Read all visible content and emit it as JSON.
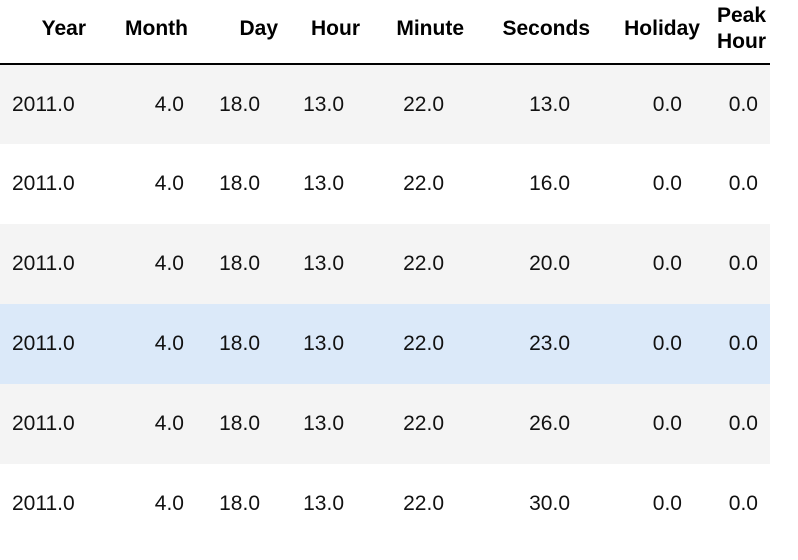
{
  "table": {
    "headers": {
      "year": "Year",
      "month": "Month",
      "day": "Day",
      "hour": "Hour",
      "minute": "Minute",
      "seconds": "Seconds",
      "holiday": "Holiday",
      "peak_hour": "Peak\nHour"
    },
    "highlighted_row_index": 3,
    "highlight_color": "#dbe9f9",
    "stripe_color": "#f4f4f4",
    "rows": [
      {
        "year": "2011.0",
        "month": "4.0",
        "day": "18.0",
        "hour": "13.0",
        "minute": "22.0",
        "seconds": "13.0",
        "holiday": "0.0",
        "peak_hour": "0.0"
      },
      {
        "year": "2011.0",
        "month": "4.0",
        "day": "18.0",
        "hour": "13.0",
        "minute": "22.0",
        "seconds": "16.0",
        "holiday": "0.0",
        "peak_hour": "0.0"
      },
      {
        "year": "2011.0",
        "month": "4.0",
        "day": "18.0",
        "hour": "13.0",
        "minute": "22.0",
        "seconds": "20.0",
        "holiday": "0.0",
        "peak_hour": "0.0"
      },
      {
        "year": "2011.0",
        "month": "4.0",
        "day": "18.0",
        "hour": "13.0",
        "minute": "22.0",
        "seconds": "23.0",
        "holiday": "0.0",
        "peak_hour": "0.0"
      },
      {
        "year": "2011.0",
        "month": "4.0",
        "day": "18.0",
        "hour": "13.0",
        "minute": "22.0",
        "seconds": "26.0",
        "holiday": "0.0",
        "peak_hour": "0.0"
      },
      {
        "year": "2011.0",
        "month": "4.0",
        "day": "18.0",
        "hour": "13.0",
        "minute": "22.0",
        "seconds": "30.0",
        "holiday": "0.0",
        "peak_hour": "0.0"
      }
    ]
  }
}
